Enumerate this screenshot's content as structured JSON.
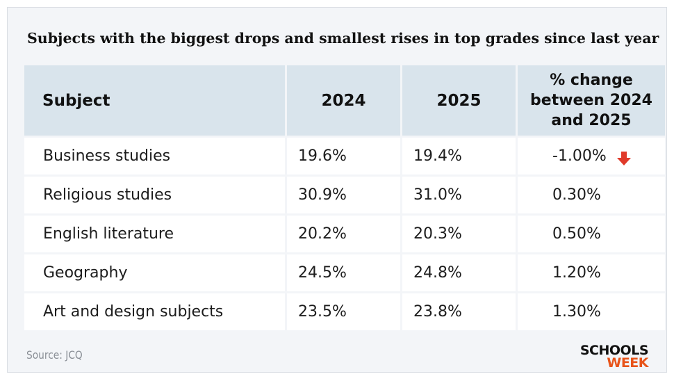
{
  "chart_data": {
    "type": "table",
    "title": "Subjects with the biggest drops and smallest rises in top grades since last year",
    "columns": [
      "Subject",
      "2024",
      "2025",
      "% change between 2024 and 2025"
    ],
    "rows": [
      {
        "subject": "Business studies",
        "y2024": "19.6%",
        "y2025": "19.4%",
        "change": "-1.00%",
        "down": true
      },
      {
        "subject": "Religious studies",
        "y2024": "30.9%",
        "y2025": "31.0%",
        "change": "0.30%",
        "down": false
      },
      {
        "subject": "English literature",
        "y2024": "20.2%",
        "y2025": "20.3%",
        "change": "0.50%",
        "down": false
      },
      {
        "subject": "Geography",
        "y2024": "24.5%",
        "y2025": "24.8%",
        "change": "1.20%",
        "down": false
      },
      {
        "subject": "Art and design subjects",
        "y2024": "23.5%",
        "y2025": "23.8%",
        "change": "1.30%",
        "down": false
      }
    ]
  },
  "source": "Source: JCQ",
  "logo": {
    "line1": "SCHOOLS",
    "line2": "WEEK"
  },
  "colors": {
    "header_bg": "#d9e4ec",
    "down_arrow": "#e03a2a",
    "logo_accent": "#e8541a"
  }
}
